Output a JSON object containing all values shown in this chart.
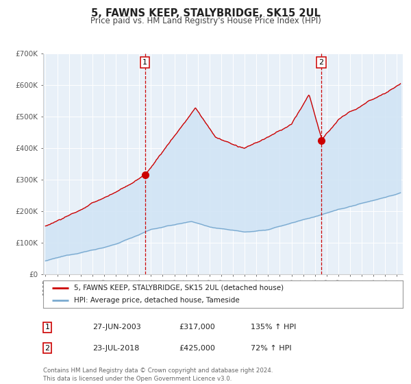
{
  "title": "5, FAWNS KEEP, STALYBRIDGE, SK15 2UL",
  "subtitle": "Price paid vs. HM Land Registry's House Price Index (HPI)",
  "legend_label_red": "5, FAWNS KEEP, STALYBRIDGE, SK15 2UL (detached house)",
  "legend_label_blue": "HPI: Average price, detached house, Tameside",
  "sale1_date": "27-JUN-2003",
  "sale1_price": "£317,000",
  "sale1_hpi": "135% ↑ HPI",
  "sale1_year": 2003.49,
  "sale1_value": 317000,
  "sale2_date": "23-JUL-2018",
  "sale2_price": "£425,000",
  "sale2_hpi": "72% ↑ HPI",
  "sale2_year": 2018.55,
  "sale2_value": 425000,
  "red_color": "#cc0000",
  "blue_color": "#7aaad0",
  "fill_color": "#d0e4f5",
  "plot_bg_color": "#e8f0f8",
  "footer_text": "Contains HM Land Registry data © Crown copyright and database right 2024.\nThis data is licensed under the Open Government Licence v3.0.",
  "ylim": [
    0,
    700000
  ],
  "xlim_start": 1994.8,
  "xlim_end": 2025.5
}
